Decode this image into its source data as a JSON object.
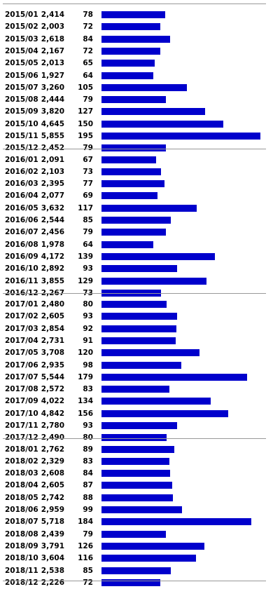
{
  "chart_data": {
    "type": "bar",
    "orientation": "horizontal",
    "grid": false,
    "colors": {
      "bar": "#0000cc",
      "divider": "#999999"
    },
    "groups": [
      {
        "rows": [
          {
            "month": "2015/01",
            "value": "2,414",
            "index": "78"
          },
          {
            "month": "2015/02",
            "value": "2,003",
            "index": "72"
          },
          {
            "month": "2015/03",
            "value": "2,618",
            "index": "84"
          },
          {
            "month": "2015/04",
            "value": "2,167",
            "index": "72"
          },
          {
            "month": "2015/05",
            "value": "2,013",
            "index": "65"
          },
          {
            "month": "2015/06",
            "value": "1,927",
            "index": "64"
          },
          {
            "month": "2015/07",
            "value": "3,260",
            "index": "105"
          },
          {
            "month": "2015/08",
            "value": "2,444",
            "index": "79"
          },
          {
            "month": "2015/09",
            "value": "3,820",
            "index": "127"
          },
          {
            "month": "2015/10",
            "value": "4,645",
            "index": "150"
          },
          {
            "month": "2015/11",
            "value": "5,855",
            "index": "195"
          },
          {
            "month": "2015/12",
            "value": "2,452",
            "index": "79"
          }
        ]
      },
      {
        "rows": [
          {
            "month": "2016/01",
            "value": "2,091",
            "index": "67"
          },
          {
            "month": "2016/02",
            "value": "2,103",
            "index": "73"
          },
          {
            "month": "2016/03",
            "value": "2,395",
            "index": "77"
          },
          {
            "month": "2016/04",
            "value": "2,077",
            "index": "69"
          },
          {
            "month": "2016/05",
            "value": "3,632",
            "index": "117"
          },
          {
            "month": "2016/06",
            "value": "2,544",
            "index": "85"
          },
          {
            "month": "2016/07",
            "value": "2,456",
            "index": "79"
          },
          {
            "month": "2016/08",
            "value": "1,978",
            "index": "64"
          },
          {
            "month": "2016/09",
            "value": "4,172",
            "index": "139"
          },
          {
            "month": "2016/10",
            "value": "2,892",
            "index": "93"
          },
          {
            "month": "2016/11",
            "value": "3,855",
            "index": "129"
          },
          {
            "month": "2016/12",
            "value": "2,267",
            "index": "73"
          }
        ]
      },
      {
        "rows": [
          {
            "month": "2017/01",
            "value": "2,480",
            "index": "80"
          },
          {
            "month": "2017/02",
            "value": "2,605",
            "index": "93"
          },
          {
            "month": "2017/03",
            "value": "2,854",
            "index": "92"
          },
          {
            "month": "2017/04",
            "value": "2,731",
            "index": "91"
          },
          {
            "month": "2017/05",
            "value": "3,708",
            "index": "120"
          },
          {
            "month": "2017/06",
            "value": "2,935",
            "index": "98"
          },
          {
            "month": "2017/07",
            "value": "5,544",
            "index": "179"
          },
          {
            "month": "2017/08",
            "value": "2,572",
            "index": "83"
          },
          {
            "month": "2017/09",
            "value": "4,022",
            "index": "134"
          },
          {
            "month": "2017/10",
            "value": "4,842",
            "index": "156"
          },
          {
            "month": "2017/11",
            "value": "2,780",
            "index": "93"
          },
          {
            "month": "2017/12",
            "value": "2,490",
            "index": "80"
          }
        ]
      },
      {
        "rows": [
          {
            "month": "2018/01",
            "value": "2,762",
            "index": "89"
          },
          {
            "month": "2018/02",
            "value": "2,329",
            "index": "83"
          },
          {
            "month": "2018/03",
            "value": "2,608",
            "index": "84"
          },
          {
            "month": "2018/04",
            "value": "2,605",
            "index": "87"
          },
          {
            "month": "2018/05",
            "value": "2,742",
            "index": "88"
          },
          {
            "month": "2018/06",
            "value": "2,959",
            "index": "99"
          },
          {
            "month": "2018/07",
            "value": "5,718",
            "index": "184"
          },
          {
            "month": "2018/08",
            "value": "2,439",
            "index": "79"
          },
          {
            "month": "2018/09",
            "value": "3,791",
            "index": "126"
          },
          {
            "month": "2018/10",
            "value": "3,604",
            "index": "116"
          },
          {
            "month": "2018/11",
            "value": "2,538",
            "index": "85"
          },
          {
            "month": "2018/12",
            "value": "2,226",
            "index": "72"
          }
        ]
      }
    ]
  }
}
